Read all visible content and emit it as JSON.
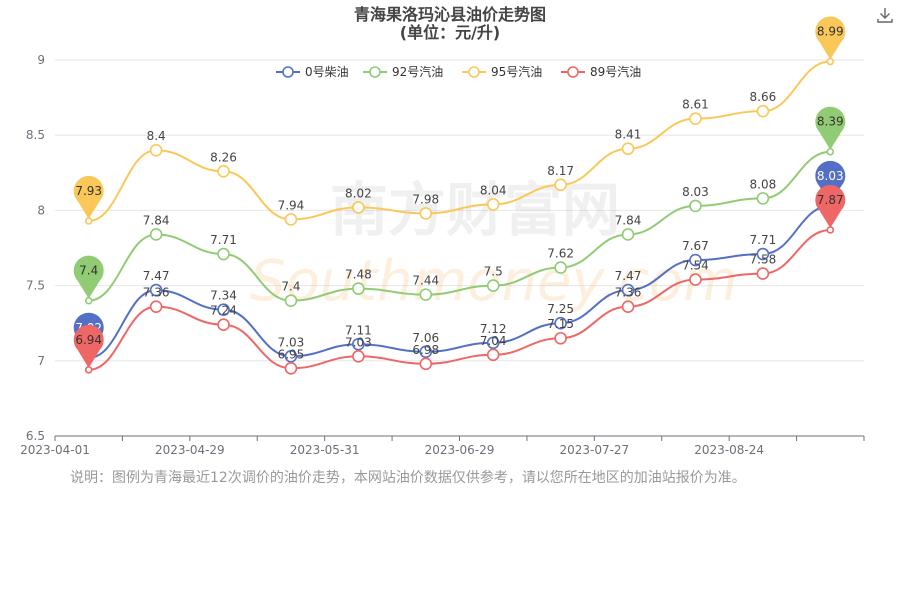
{
  "title": {
    "line1": "青海果洛玛沁县油价走势图",
    "line2": "(单位：元/升)"
  },
  "download_icon": "download-icon",
  "watermark": "南方财富网 southmoney.com",
  "note": "说明：图例为青海最近12次调价的油价走势，本网站油价数据仅供参考，请以您所在地区的加油站报价为准。",
  "chart_data": {
    "type": "line",
    "title": "青海果洛玛沁县油价走势图",
    "subtitle": "(单位：元/升)",
    "xlabel": "",
    "ylabel": "",
    "ylim": [
      6.5,
      9
    ],
    "yticks": [
      "6.5",
      "7",
      "7.5",
      "8",
      "8.5",
      "9"
    ],
    "xticks": [
      "2023-04-01",
      "2023-04-29",
      "2023-05-31",
      "2023-06-29",
      "2023-07-27",
      "2023-08-24"
    ],
    "grid": true,
    "legend_position": "top",
    "smooth": true,
    "series": [
      {
        "name": "0号柴油",
        "color": "#5470c6",
        "values": [
          7.02,
          7.47,
          7.34,
          7.03,
          7.11,
          7.06,
          7.12,
          7.25,
          7.47,
          7.67,
          7.71,
          8.03
        ]
      },
      {
        "name": "92号汽油",
        "color": "#91cc75",
        "values": [
          7.4,
          7.84,
          7.71,
          7.4,
          7.48,
          7.44,
          7.5,
          7.62,
          7.84,
          8.03,
          8.08,
          8.39
        ]
      },
      {
        "name": "95号汽油",
        "color": "#fac858",
        "values": [
          7.93,
          8.4,
          8.26,
          7.94,
          8.02,
          7.98,
          8.04,
          8.17,
          8.41,
          8.61,
          8.66,
          8.99
        ]
      },
      {
        "name": "89号汽油",
        "color": "#ee6666",
        "values": [
          6.94,
          7.36,
          7.24,
          6.95,
          7.03,
          6.98,
          7.04,
          7.15,
          7.36,
          7.54,
          7.58,
          7.87
        ]
      }
    ]
  }
}
